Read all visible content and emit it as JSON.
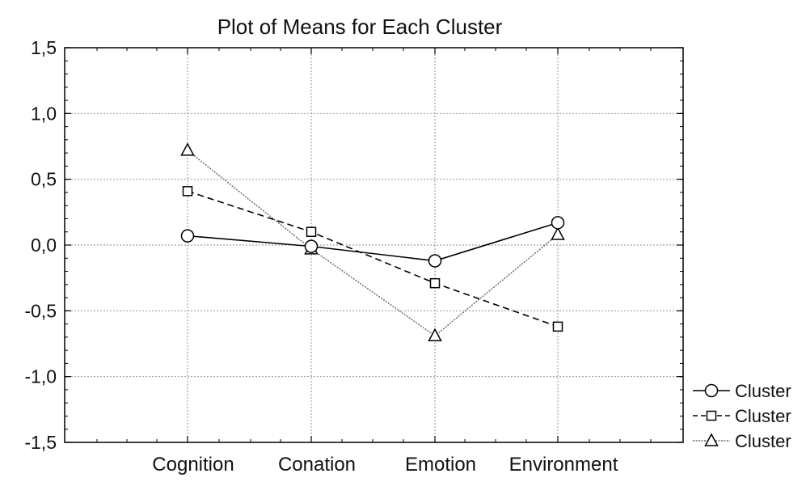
{
  "chart_data": {
    "type": "line",
    "title": "Plot of Means for Each Cluster",
    "xlabel": "",
    "ylabel": "",
    "categories": [
      "Cognition",
      "Conation",
      "Emotion",
      "Environment"
    ],
    "ylim": [
      -1.5,
      1.5
    ],
    "yticks": [
      -1.5,
      -1.0,
      -0.5,
      0.0,
      0.5,
      1.0,
      1.5
    ],
    "ytick_labels": [
      "-1,5",
      "-1,0",
      "-0,5",
      "0,0",
      "0,5",
      "1,0",
      "1,5"
    ],
    "grid": true,
    "legend_position": "bottom-right, outside plot area",
    "series": [
      {
        "name": "Cluster",
        "marker": "circle",
        "line_style": "solid",
        "color": "#000000",
        "values": [
          0.07,
          -0.01,
          -0.12,
          0.17
        ]
      },
      {
        "name": "Cluster",
        "marker": "square",
        "line_style": "dashed",
        "color": "#000000",
        "values": [
          0.41,
          0.1,
          -0.29,
          -0.62
        ]
      },
      {
        "name": "Cluster",
        "marker": "triangle",
        "line_style": "dotted",
        "color": "#666666",
        "values": [
          0.72,
          -0.03,
          -0.69,
          0.08
        ]
      }
    ]
  }
}
